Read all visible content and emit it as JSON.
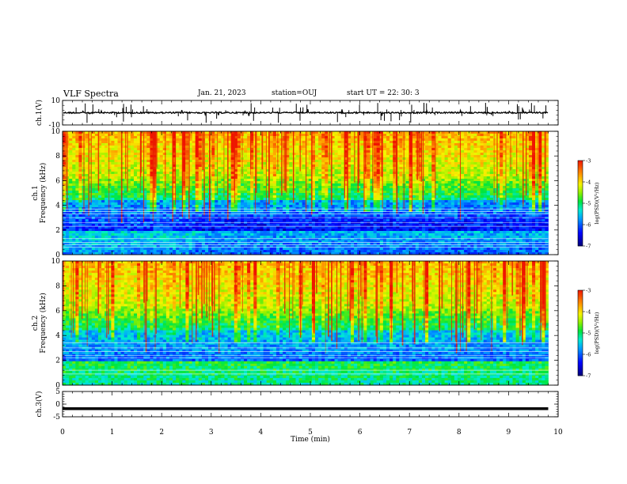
{
  "header": {
    "title": "VLF Spectra",
    "date": "Jan. 21, 2023",
    "station": "station=OUJ",
    "start_ut": "start  UT =   22: 30: 3"
  },
  "chart_data": [
    {
      "type": "line",
      "panel": "ch1-waveform",
      "ylabel": "ch.1(V)",
      "ylim": [
        -10,
        10
      ],
      "y_ticks": [
        "10",
        "-10"
      ],
      "xlim": [
        0,
        10
      ],
      "data_end_min": 9.8,
      "baseline_v": 0,
      "color": "#000000"
    },
    {
      "type": "heatmap",
      "panel": "ch1-spectrogram",
      "ylabel": "ch.1\nFrequency  (kHz)",
      "ylim": [
        0,
        10
      ],
      "y_ticks": [
        "0",
        "2",
        "4",
        "6",
        "8",
        "10"
      ],
      "xlim": [
        0,
        10
      ],
      "colorbar": {
        "label": "log(PSD)(V²/Hz)",
        "ticks": [
          "-3",
          "-4",
          "-5",
          "-6",
          "-7"
        ],
        "range": [
          -7,
          -3
        ]
      }
    },
    {
      "type": "heatmap",
      "panel": "ch2-spectrogram",
      "ylabel": "ch.2\nFrequency  (kHz)",
      "ylim": [
        0,
        10
      ],
      "y_ticks": [
        "0",
        "2",
        "4",
        "6",
        "8",
        "10"
      ],
      "xlim": [
        0,
        10
      ],
      "colorbar": {
        "label": "log(PSD)(V²/Hz)",
        "ticks": [
          "-3",
          "-4",
          "-5",
          "-6",
          "-7"
        ],
        "range": [
          -7,
          -3
        ]
      }
    },
    {
      "type": "line",
      "panel": "ch3-waveform",
      "ylabel": "ch.3(V)",
      "ylim": [
        -5,
        5
      ],
      "y_ticks": [
        "5",
        "0",
        "-5"
      ],
      "xlim": [
        0,
        10
      ],
      "data_end_min": 9.8,
      "baseline_v": -1.8,
      "color": "#000000",
      "xlabel": "Time  (min)",
      "x_ticks": [
        "0",
        "1",
        "2",
        "3",
        "4",
        "5",
        "6",
        "7",
        "8",
        "9",
        "10"
      ]
    }
  ]
}
